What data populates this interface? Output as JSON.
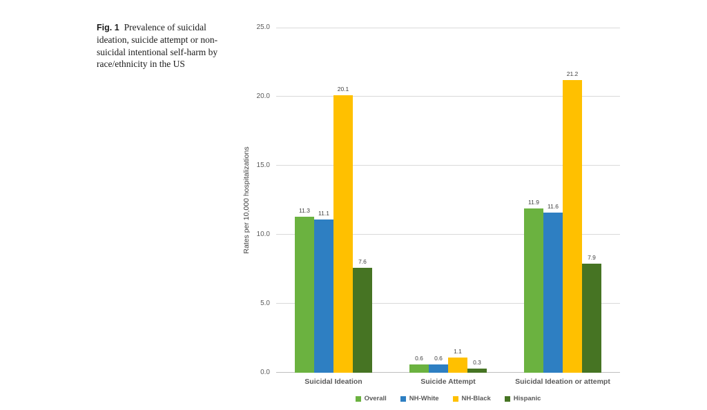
{
  "figure": {
    "caption_label": "Fig. 1",
    "caption_text": "Prevalence of suicidal ideation, suicide attempt or non-suicidal intentional self-harm by race/ethnicity in the US"
  },
  "chart_data": {
    "type": "bar",
    "title": "",
    "xlabel": "",
    "ylabel": "Rates per 10,000 hospitalizations",
    "ylim": [
      0,
      25
    ],
    "ytick_step": 5,
    "ytick_labels": [
      "0.0",
      "5.0",
      "10.0",
      "15.0",
      "20.0",
      "25.0"
    ],
    "grid": true,
    "data_labels": true,
    "legend_position": "bottom",
    "categories": [
      "Suicidal Ideation",
      "Suicide Attempt",
      "Suicidal Ideation or attempt"
    ],
    "series": [
      {
        "name": "Overall",
        "color": "#6BB240",
        "values": [
          11.3,
          0.6,
          11.9
        ]
      },
      {
        "name": "NH-White",
        "color": "#2E7FC2",
        "values": [
          11.1,
          0.6,
          11.6
        ]
      },
      {
        "name": "NH-Black",
        "color": "#FFC000",
        "values": [
          20.1,
          1.1,
          21.2
        ]
      },
      {
        "name": "Hispanic",
        "color": "#467423",
        "values": [
          7.6,
          0.3,
          7.9
        ]
      }
    ]
  }
}
